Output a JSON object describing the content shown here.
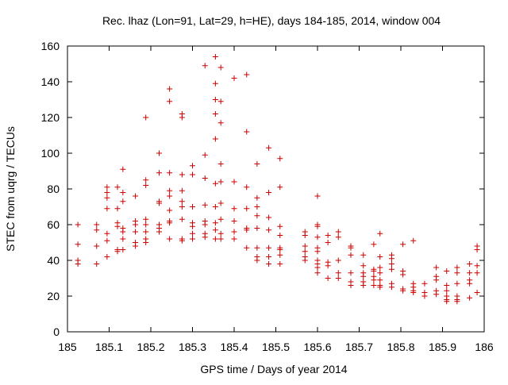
{
  "chart_data": {
    "type": "scatter",
    "title": "Rec. lhaz (Lon=91, Lat=29, h=HE), days 184-185, 2014, window 004",
    "xlabel": "GPS time / Days of year 2014",
    "ylabel": "STEC from uqrg / TECUs",
    "xlim": [
      185,
      186
    ],
    "ylim": [
      0,
      160
    ],
    "xticks": [
      185,
      185.1,
      185.2,
      185.3,
      185.4,
      185.5,
      185.6,
      185.7,
      185.8,
      185.9,
      186
    ],
    "xtick_labels": [
      "185",
      "185.1",
      "185.2",
      "185.3",
      "185.4",
      "185.5",
      "185.6",
      "185.7",
      "185.8",
      "185.9",
      "186"
    ],
    "yticks": [
      0,
      20,
      40,
      60,
      80,
      100,
      120,
      140,
      160
    ],
    "ytick_labels": [
      "0",
      "20",
      "40",
      "60",
      "80",
      "100",
      "120",
      "140",
      "160"
    ],
    "grid": false,
    "marker": "+",
    "color": "#cc0000",
    "points": [
      [
        185.025,
        60
      ],
      [
        185.025,
        49
      ],
      [
        185.025,
        40
      ],
      [
        185.025,
        38
      ],
      [
        185.07,
        60
      ],
      [
        185.07,
        57
      ],
      [
        185.07,
        48
      ],
      [
        185.07,
        38
      ],
      [
        185.095,
        81
      ],
      [
        185.095,
        78
      ],
      [
        185.095,
        75
      ],
      [
        185.095,
        69
      ],
      [
        185.095,
        55
      ],
      [
        185.095,
        51
      ],
      [
        185.095,
        42
      ],
      [
        185.12,
        81
      ],
      [
        185.12,
        69
      ],
      [
        185.12,
        61
      ],
      [
        185.12,
        59
      ],
      [
        185.12,
        46
      ],
      [
        185.12,
        45
      ],
      [
        185.133,
        91
      ],
      [
        185.133,
        78
      ],
      [
        185.133,
        73
      ],
      [
        185.133,
        58
      ],
      [
        185.133,
        56
      ],
      [
        185.133,
        52
      ],
      [
        185.133,
        46
      ],
      [
        185.163,
        76
      ],
      [
        185.163,
        62
      ],
      [
        185.163,
        60
      ],
      [
        185.163,
        56
      ],
      [
        185.163,
        50
      ],
      [
        185.163,
        48
      ],
      [
        185.188,
        120
      ],
      [
        185.188,
        85
      ],
      [
        185.188,
        82
      ],
      [
        185.188,
        63
      ],
      [
        185.188,
        60
      ],
      [
        185.188,
        56
      ],
      [
        185.188,
        52
      ],
      [
        185.188,
        50
      ],
      [
        185.22,
        100
      ],
      [
        185.22,
        89
      ],
      [
        185.22,
        73
      ],
      [
        185.22,
        72
      ],
      [
        185.22,
        60
      ],
      [
        185.22,
        58
      ],
      [
        185.22,
        56
      ],
      [
        185.245,
        136
      ],
      [
        185.245,
        129
      ],
      [
        185.245,
        89
      ],
      [
        185.245,
        79
      ],
      [
        185.245,
        76
      ],
      [
        185.245,
        68
      ],
      [
        185.245,
        62
      ],
      [
        185.245,
        61
      ],
      [
        185.245,
        52
      ],
      [
        185.275,
        122
      ],
      [
        185.275,
        120
      ],
      [
        185.275,
        88
      ],
      [
        185.275,
        79
      ],
      [
        185.275,
        73
      ],
      [
        185.275,
        70
      ],
      [
        185.275,
        63
      ],
      [
        185.275,
        52
      ],
      [
        185.275,
        51
      ],
      [
        185.3,
        93
      ],
      [
        185.3,
        88
      ],
      [
        185.3,
        70
      ],
      [
        185.3,
        61
      ],
      [
        185.3,
        59
      ],
      [
        185.3,
        55
      ],
      [
        185.3,
        52
      ],
      [
        185.33,
        149
      ],
      [
        185.33,
        99
      ],
      [
        185.33,
        86
      ],
      [
        185.33,
        71
      ],
      [
        185.33,
        62
      ],
      [
        185.33,
        60
      ],
      [
        185.33,
        55
      ],
      [
        185.33,
        53
      ],
      [
        185.355,
        154
      ],
      [
        185.355,
        139
      ],
      [
        185.355,
        130
      ],
      [
        185.355,
        122
      ],
      [
        185.355,
        108
      ],
      [
        185.355,
        83
      ],
      [
        185.355,
        70
      ],
      [
        185.355,
        61
      ],
      [
        185.355,
        57
      ],
      [
        185.355,
        52
      ],
      [
        185.368,
        148
      ],
      [
        185.368,
        129
      ],
      [
        185.368,
        117
      ],
      [
        185.368,
        94
      ],
      [
        185.368,
        84
      ],
      [
        185.368,
        72
      ],
      [
        185.368,
        63
      ],
      [
        185.368,
        55
      ],
      [
        185.368,
        52
      ],
      [
        185.4,
        142
      ],
      [
        185.4,
        84
      ],
      [
        185.4,
        69
      ],
      [
        185.4,
        62
      ],
      [
        185.4,
        56
      ],
      [
        185.4,
        52
      ],
      [
        185.43,
        144
      ],
      [
        185.43,
        112
      ],
      [
        185.43,
        81
      ],
      [
        185.43,
        69
      ],
      [
        185.43,
        58
      ],
      [
        185.43,
        57
      ],
      [
        185.43,
        47
      ],
      [
        185.455,
        94
      ],
      [
        185.455,
        75
      ],
      [
        185.455,
        70
      ],
      [
        185.455,
        65
      ],
      [
        185.455,
        58
      ],
      [
        185.455,
        47
      ],
      [
        185.455,
        42
      ],
      [
        185.455,
        40
      ],
      [
        185.483,
        103
      ],
      [
        185.483,
        78
      ],
      [
        185.483,
        64
      ],
      [
        185.483,
        57
      ],
      [
        185.483,
        47
      ],
      [
        185.483,
        42
      ],
      [
        185.483,
        38
      ],
      [
        185.51,
        97
      ],
      [
        185.51,
        81
      ],
      [
        185.51,
        59
      ],
      [
        185.51,
        54
      ],
      [
        185.51,
        47
      ],
      [
        185.51,
        46
      ],
      [
        185.51,
        43
      ],
      [
        185.51,
        38
      ],
      [
        185.57,
        56
      ],
      [
        185.57,
        54
      ],
      [
        185.57,
        48
      ],
      [
        185.57,
        45
      ],
      [
        185.57,
        42
      ],
      [
        185.57,
        40
      ],
      [
        185.6,
        76
      ],
      [
        185.6,
        60
      ],
      [
        185.6,
        59
      ],
      [
        185.6,
        53
      ],
      [
        185.6,
        47
      ],
      [
        185.6,
        45
      ],
      [
        185.6,
        40
      ],
      [
        185.6,
        38
      ],
      [
        185.6,
        36
      ],
      [
        185.6,
        33
      ],
      [
        185.625,
        54
      ],
      [
        185.625,
        50
      ],
      [
        185.625,
        39
      ],
      [
        185.625,
        37
      ],
      [
        185.625,
        30
      ],
      [
        185.65,
        56
      ],
      [
        185.65,
        53
      ],
      [
        185.65,
        40
      ],
      [
        185.65,
        33
      ],
      [
        185.65,
        30
      ],
      [
        185.68,
        48
      ],
      [
        185.68,
        47
      ],
      [
        185.68,
        43
      ],
      [
        185.68,
        33
      ],
      [
        185.68,
        28
      ],
      [
        185.68,
        26
      ],
      [
        185.71,
        43
      ],
      [
        185.71,
        37
      ],
      [
        185.71,
        33
      ],
      [
        185.71,
        31
      ],
      [
        185.71,
        28
      ],
      [
        185.71,
        26
      ],
      [
        185.735,
        49
      ],
      [
        185.735,
        35
      ],
      [
        185.735,
        34
      ],
      [
        185.735,
        31
      ],
      [
        185.735,
        29
      ],
      [
        185.735,
        26
      ],
      [
        185.75,
        55
      ],
      [
        185.75,
        42
      ],
      [
        185.75,
        36
      ],
      [
        185.75,
        33
      ],
      [
        185.75,
        29
      ],
      [
        185.75,
        26
      ],
      [
        185.75,
        25
      ],
      [
        185.778,
        43
      ],
      [
        185.778,
        41
      ],
      [
        185.778,
        38
      ],
      [
        185.778,
        35
      ],
      [
        185.778,
        27
      ],
      [
        185.778,
        25
      ],
      [
        185.805,
        49
      ],
      [
        185.805,
        34
      ],
      [
        185.805,
        32
      ],
      [
        185.805,
        24
      ],
      [
        185.805,
        23
      ],
      [
        185.83,
        51
      ],
      [
        185.83,
        27
      ],
      [
        185.83,
        25
      ],
      [
        185.83,
        23
      ],
      [
        185.83,
        22
      ],
      [
        185.857,
        27
      ],
      [
        185.857,
        22
      ],
      [
        185.857,
        20
      ],
      [
        185.885,
        36
      ],
      [
        185.885,
        31
      ],
      [
        185.885,
        29
      ],
      [
        185.885,
        23
      ],
      [
        185.885,
        21
      ],
      [
        185.91,
        34
      ],
      [
        185.91,
        26
      ],
      [
        185.91,
        23
      ],
      [
        185.91,
        20
      ],
      [
        185.91,
        18
      ],
      [
        185.91,
        17
      ],
      [
        185.935,
        36
      ],
      [
        185.935,
        33
      ],
      [
        185.935,
        27
      ],
      [
        185.935,
        20
      ],
      [
        185.935,
        18
      ],
      [
        185.935,
        17
      ],
      [
        185.965,
        38
      ],
      [
        185.965,
        33
      ],
      [
        185.965,
        29
      ],
      [
        185.965,
        27
      ],
      [
        185.965,
        19
      ],
      [
        185.983,
        48
      ],
      [
        185.983,
        46
      ],
      [
        185.983,
        37
      ],
      [
        185.983,
        33
      ],
      [
        185.983,
        22
      ]
    ]
  }
}
